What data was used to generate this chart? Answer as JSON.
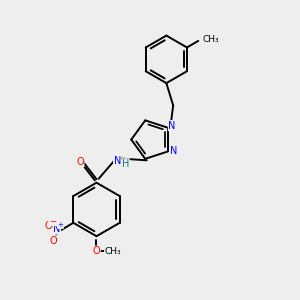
{
  "bg_color": "#eeeeee",
  "bond_color": "#000000",
  "bond_width": 1.4,
  "atom_colors": {
    "N": "#0000ff",
    "O": "#ff0000",
    "H": "#008080",
    "C": "#000000"
  },
  "font_size": 7.0,
  "fig_size": [
    3.0,
    3.0
  ],
  "dpi": 100
}
